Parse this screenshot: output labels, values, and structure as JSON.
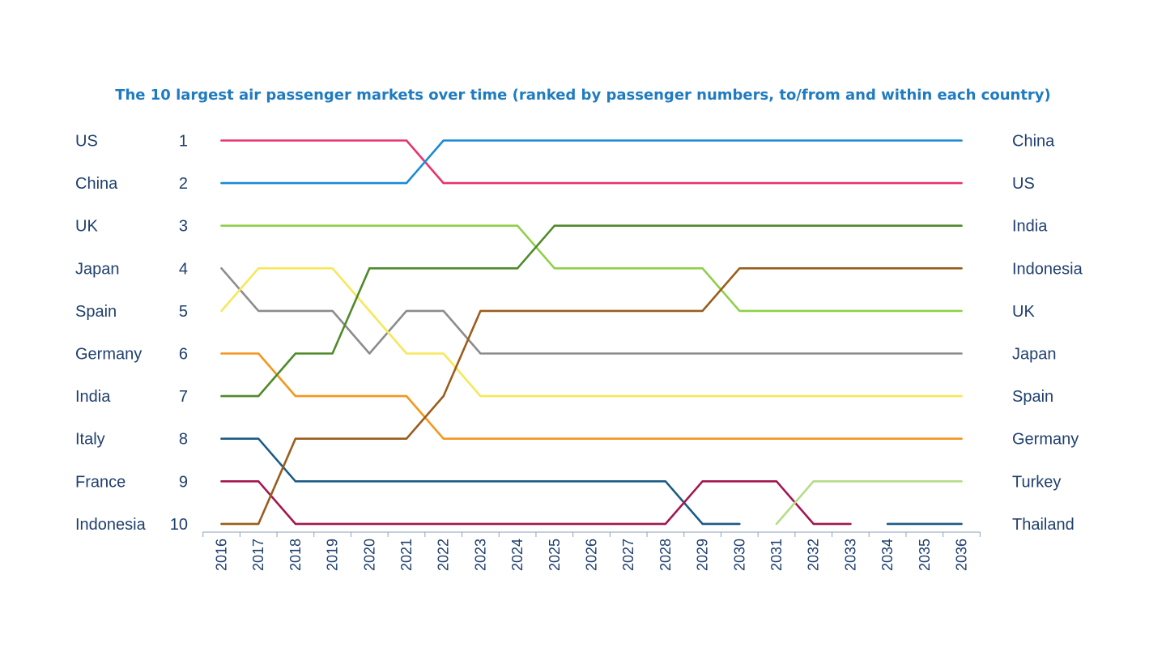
{
  "chart_data": {
    "type": "line",
    "title": "The 10 largest air passenger markets over time (ranked by passenger numbers, to/from and within each country)",
    "xlabel": "",
    "ylabel": "",
    "x": [
      "2016",
      "2017",
      "2018",
      "2019",
      "2020",
      "2021",
      "2022",
      "2023",
      "2024",
      "2025",
      "2026",
      "2027",
      "2028",
      "2029",
      "2030",
      "2031",
      "2032",
      "2033",
      "2034",
      "2035",
      "2036"
    ],
    "ranks": [
      "1",
      "2",
      "3",
      "4",
      "5",
      "6",
      "7",
      "8",
      "9",
      "10"
    ],
    "ylim": [
      1,
      10
    ],
    "y_reversed": true,
    "left_labels": [
      "US",
      "China",
      "UK",
      "Japan",
      "Spain",
      "Germany",
      "India",
      "Italy",
      "France",
      "Indonesia"
    ],
    "right_labels": [
      "China",
      "US",
      "India",
      "Indonesia",
      "UK",
      "Japan",
      "Spain",
      "Germany",
      "Turkey",
      "Thailand"
    ],
    "series": [
      {
        "name": "US",
        "color": "#e8336f",
        "values": [
          1,
          1,
          1,
          1,
          1,
          1,
          2,
          2,
          2,
          2,
          2,
          2,
          2,
          2,
          2,
          2,
          2,
          2,
          2,
          2,
          2
        ]
      },
      {
        "name": "China",
        "color": "#1a8ad4",
        "values": [
          2,
          2,
          2,
          2,
          2,
          2,
          1,
          1,
          1,
          1,
          1,
          1,
          1,
          1,
          1,
          1,
          1,
          1,
          1,
          1,
          1
        ]
      },
      {
        "name": "UK",
        "color": "#8fcf4a",
        "values": [
          3,
          3,
          3,
          3,
          3,
          3,
          3,
          3,
          3,
          4,
          4,
          4,
          4,
          4,
          5,
          5,
          5,
          5,
          5,
          5,
          5
        ]
      },
      {
        "name": "Japan",
        "color": "#8c8c8c",
        "values": [
          4,
          5,
          5,
          5,
          6,
          5,
          5,
          6,
          6,
          6,
          6,
          6,
          6,
          6,
          6,
          6,
          6,
          6,
          6,
          6,
          6
        ]
      },
      {
        "name": "Spain",
        "color": "#f7e75a",
        "values": [
          5,
          4,
          4,
          4,
          5,
          6,
          6,
          7,
          7,
          7,
          7,
          7,
          7,
          7,
          7,
          7,
          7,
          7,
          7,
          7,
          7
        ]
      },
      {
        "name": "Germany",
        "color": "#f5961e",
        "values": [
          6,
          6,
          7,
          7,
          7,
          7,
          8,
          8,
          8,
          8,
          8,
          8,
          8,
          8,
          8,
          8,
          8,
          8,
          8,
          8,
          8
        ]
      },
      {
        "name": "India",
        "color": "#4f8a2a",
        "values": [
          7,
          7,
          6,
          6,
          4,
          4,
          4,
          4,
          4,
          3,
          3,
          3,
          3,
          3,
          3,
          3,
          3,
          3,
          3,
          3,
          3
        ]
      },
      {
        "name": "Italy",
        "color": "#1b5b86",
        "values": [
          8,
          8,
          9,
          9,
          9,
          9,
          9,
          9,
          9,
          9,
          9,
          9,
          9,
          10,
          10,
          null,
          null,
          null,
          null,
          null,
          null
        ]
      },
      {
        "name": "France",
        "color": "#a31650",
        "values": [
          9,
          9,
          10,
          10,
          10,
          10,
          10,
          10,
          10,
          10,
          10,
          10,
          10,
          9,
          9,
          9,
          10,
          10,
          null,
          null,
          null
        ]
      },
      {
        "name": "Indonesia",
        "color": "#9a5d1c",
        "values": [
          10,
          10,
          8,
          8,
          8,
          8,
          7,
          5,
          5,
          5,
          5,
          5,
          5,
          5,
          4,
          4,
          4,
          4,
          4,
          4,
          4
        ]
      },
      {
        "name": "Turkey",
        "color": "#b5dc86",
        "values": [
          null,
          null,
          null,
          null,
          null,
          null,
          null,
          null,
          null,
          null,
          null,
          null,
          null,
          null,
          null,
          10,
          9,
          9,
          9,
          9,
          9
        ]
      },
      {
        "name": "Thailand",
        "color": "#1b5b86",
        "values": [
          null,
          null,
          null,
          null,
          null,
          null,
          null,
          null,
          null,
          null,
          null,
          null,
          null,
          null,
          null,
          null,
          null,
          null,
          10,
          10,
          10
        ]
      }
    ]
  }
}
